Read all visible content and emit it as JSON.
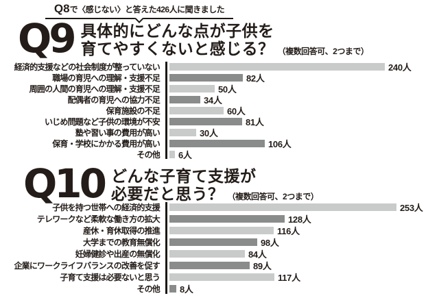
{
  "note": {
    "q_label": "Q8",
    "text": "で〈感じない〉と答えた426人に聞きました"
  },
  "q9": {
    "q_label": "Q9",
    "title_line1": "具体的にどんな点が子供を",
    "title_line2": "育てやすくないと感じる？",
    "subtitle": "（複数回答可、2つまで）"
  },
  "q10": {
    "q_label": "Q10",
    "title_line1": "どんな子育て支援が",
    "title_line2": "必要だと思う？",
    "subtitle": "（複数回答可、2つまで）"
  },
  "colors": {
    "bar_light": "#c9caca",
    "bar_dark": "#8a8b8b",
    "text": "#231c19",
    "axis": "#1d1815"
  },
  "chart_data": [
    {
      "type": "bar",
      "orientation": "horizontal",
      "question": "Q9",
      "title": "具体的にどんな点が子供を育てやすくないと感じる？",
      "note": "（複数回答可、2つまで）",
      "unit": "人",
      "categories": [
        "経済的支援などの社会制度が整っていない",
        "職場の育児への理解・支援不足",
        "周囲の人間の育児への理解・支援不足",
        "配偶者の育児への協力不足",
        "保育施設の不足",
        "いじめ問題など子供の環境が不安",
        "塾や習い事の費用が高い",
        "保育・学校にかかる費用が高い",
        "その他"
      ],
      "values": [
        240,
        82,
        50,
        34,
        60,
        81,
        30,
        106,
        6
      ],
      "xlim": [
        0,
        260
      ],
      "grid": false,
      "legend": false
    },
    {
      "type": "bar",
      "orientation": "horizontal",
      "question": "Q10",
      "title": "どんな子育て支援が必要だと思う？",
      "note": "（複数回答可、2つまで）",
      "unit": "人",
      "categories": [
        "子供を持つ世帯への経済的支援",
        "テレワークなど柔軟な働き方の拡大",
        "産休・育休取得の推進",
        "大学までの教育無償化",
        "妊婦健診や出産の無償化",
        "企業にワークライフバランスの改善を促す",
        "子育て支援は必要ないと思う",
        "その他"
      ],
      "values": [
        253,
        128,
        116,
        98,
        84,
        89,
        117,
        8
      ],
      "xlim": [
        0,
        260
      ],
      "grid": false,
      "legend": false
    }
  ]
}
